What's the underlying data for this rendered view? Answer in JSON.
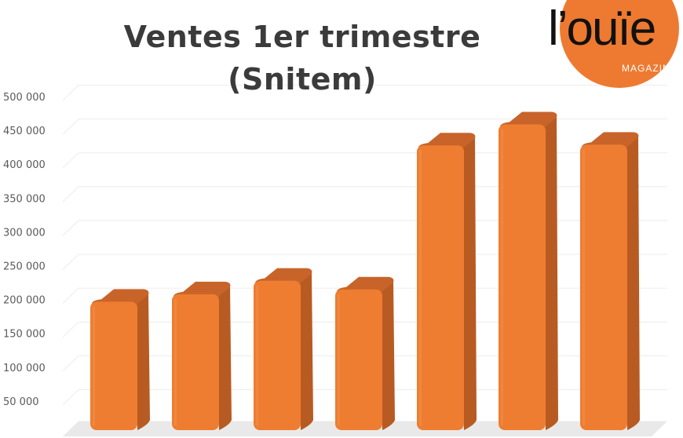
{
  "logo": {
    "wordmark": "l’ouïe",
    "subtitle": "MAGAZINE"
  },
  "colors": {
    "bar_front": "#ee7d31",
    "bar_side": "#b85b22",
    "bar_top": "#c8642a",
    "grid": "#ececec",
    "floor": "#e9e9e9",
    "logo_circle": "#ee7a31"
  },
  "chart_data": {
    "type": "bar",
    "title": "Ventes 1er trimestre\n(Snitem)",
    "xlabel": "",
    "ylabel": "",
    "three_d": true,
    "grid": true,
    "ylim": [
      0,
      500000
    ],
    "yticks": [
      50000,
      100000,
      150000,
      200000,
      250000,
      300000,
      350000,
      400000,
      450000,
      500000
    ],
    "ytick_labels": [
      "50 000",
      "100 000",
      "150 000",
      "200 000",
      "250 000",
      "300 000",
      "350 000",
      "400 000",
      "450 000",
      "500 000"
    ],
    "categories": [
      "",
      "",
      "",
      "",
      "",
      "",
      ""
    ],
    "values": [
      198000,
      209000,
      229000,
      216000,
      429000,
      460000,
      430000
    ]
  }
}
